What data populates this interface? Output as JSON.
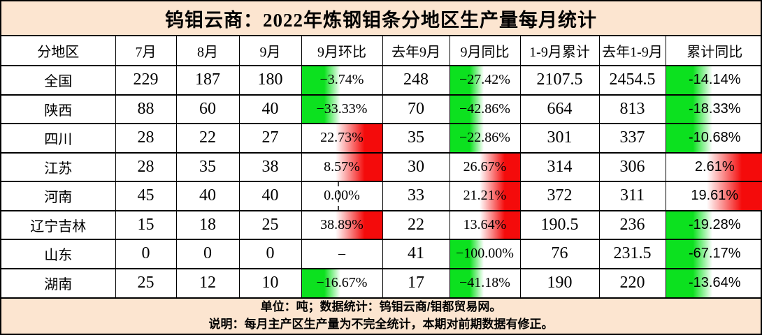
{
  "title": "钨钼云商：2022年炼钢钼条分地区生产量每月统计",
  "columns": [
    "分地区",
    "7月",
    "8月",
    "9月",
    "9月环比",
    "去年9月",
    "9月同比",
    "1-9月累计",
    "去年1-9月",
    "累计同比"
  ],
  "table": {
    "rows": [
      {
        "region": "全国",
        "jul": "229",
        "aug": "187",
        "sep": "180",
        "mom": {
          "text": "−3.74%",
          "dir": "neg"
        },
        "sep_last_year": "248",
        "yoy": {
          "text": "−27.42%",
          "dir": "neg"
        },
        "cum": "2107.5",
        "cum_last_year": "2454.5",
        "cum_yoy": {
          "text": "-14.14%",
          "dir": "neg"
        }
      },
      {
        "region": "陕西",
        "jul": "88",
        "aug": "60",
        "sep": "40",
        "mom": {
          "text": "−33.33%",
          "dir": "neg"
        },
        "sep_last_year": "70",
        "yoy": {
          "text": "−42.86%",
          "dir": "neg"
        },
        "cum": "664",
        "cum_last_year": "813",
        "cum_yoy": {
          "text": "-18.33%",
          "dir": "neg"
        }
      },
      {
        "region": "四川",
        "jul": "28",
        "aug": "22",
        "sep": "27",
        "mom": {
          "text": "22.73%",
          "dir": "pos"
        },
        "sep_last_year": "35",
        "yoy": {
          "text": "−22.86%",
          "dir": "neg"
        },
        "cum": "301",
        "cum_last_year": "337",
        "cum_yoy": {
          "text": "-10.68%",
          "dir": "neg"
        }
      },
      {
        "region": "江苏",
        "jul": "28",
        "aug": "35",
        "sep": "38",
        "mom": {
          "text": "8.57%",
          "dir": "pos"
        },
        "sep_last_year": "30",
        "yoy": {
          "text": "26.67%",
          "dir": "pos"
        },
        "cum": "314",
        "cum_last_year": "306",
        "cum_yoy": {
          "text": "2.61%",
          "dir": "pos"
        }
      },
      {
        "region": "河南",
        "jul": "45",
        "aug": "40",
        "sep": "40",
        "mom": {
          "text": "0.00%",
          "dir": "zero"
        },
        "sep_last_year": "33",
        "yoy": {
          "text": "21.21%",
          "dir": "pos"
        },
        "cum": "372",
        "cum_last_year": "311",
        "cum_yoy": {
          "text": "19.61%",
          "dir": "pos"
        }
      },
      {
        "region": "辽宁吉林",
        "jul": "15",
        "aug": "18",
        "sep": "25",
        "mom": {
          "text": "38.89%",
          "dir": "pos"
        },
        "sep_last_year": "22",
        "yoy": {
          "text": "13.64%",
          "dir": "pos"
        },
        "cum": "190.5",
        "cum_last_year": "236",
        "cum_yoy": {
          "text": "-19.28%",
          "dir": "neg"
        }
      },
      {
        "region": "山东",
        "jul": "0",
        "aug": "0",
        "sep": "0",
        "mom": {
          "text": "–",
          "dir": "none"
        },
        "sep_last_year": "41",
        "yoy": {
          "text": "−100.00%",
          "dir": "neg"
        },
        "cum": "76",
        "cum_last_year": "231.5",
        "cum_yoy": {
          "text": "-67.17%",
          "dir": "neg"
        }
      },
      {
        "region": "湖南",
        "jul": "25",
        "aug": "12",
        "sep": "10",
        "mom": {
          "text": "−16.67%",
          "dir": "neg"
        },
        "sep_last_year": "17",
        "yoy": {
          "text": "−41.18%",
          "dir": "neg"
        },
        "cum": "190",
        "cum_last_year": "220",
        "cum_yoy": {
          "text": "-13.64%",
          "dir": "neg"
        }
      }
    ]
  },
  "footer": {
    "line1": "单位：吨；数据统计：钨钼云商/钼都贸易网。",
    "line2": "说明：每月主产区生产量为不完全统计，本期对前期数据有修正。"
  },
  "colors": {
    "banner_bg": "#fce5d0",
    "negative_bar_green": "#0ce11f",
    "positive_bar_red": "#f40b0b",
    "border": "#000000"
  },
  "chart_data": {
    "type": "table",
    "title": "钨钼云商：2022年炼钢钼条分地区生产量每月统计",
    "columns": [
      "分地区",
      "7月",
      "8月",
      "9月",
      "9月环比",
      "去年9月",
      "9月同比",
      "1-9月累计",
      "去年1-9月",
      "累计同比"
    ],
    "rows": [
      [
        "全国",
        229,
        187,
        180,
        -3.74,
        248,
        -27.42,
        2107.5,
        2454.5,
        -14.14
      ],
      [
        "陕西",
        88,
        60,
        40,
        -33.33,
        70,
        -42.86,
        664,
        813,
        -18.33
      ],
      [
        "四川",
        28,
        22,
        27,
        22.73,
        35,
        -22.86,
        301,
        337,
        -10.68
      ],
      [
        "江苏",
        28,
        35,
        38,
        8.57,
        30,
        26.67,
        314,
        306,
        2.61
      ],
      [
        "河南",
        45,
        40,
        40,
        0.0,
        33,
        21.21,
        372,
        311,
        19.61
      ],
      [
        "辽宁吉林",
        15,
        18,
        25,
        38.89,
        22,
        13.64,
        190.5,
        236,
        -19.28
      ],
      [
        "山东",
        0,
        0,
        0,
        null,
        41,
        -100.0,
        76,
        231.5,
        -67.17
      ],
      [
        "湖南",
        25,
        12,
        10,
        -16.67,
        17,
        -41.18,
        190,
        220,
        -13.64
      ]
    ],
    "percent_columns": [
      "9月环比",
      "9月同比",
      "累计同比"
    ],
    "unit": "吨",
    "formatting": "数据条：负值绿色(左侧渐变)，正值红色(右侧渐变)，0.00%为虚线轴"
  }
}
